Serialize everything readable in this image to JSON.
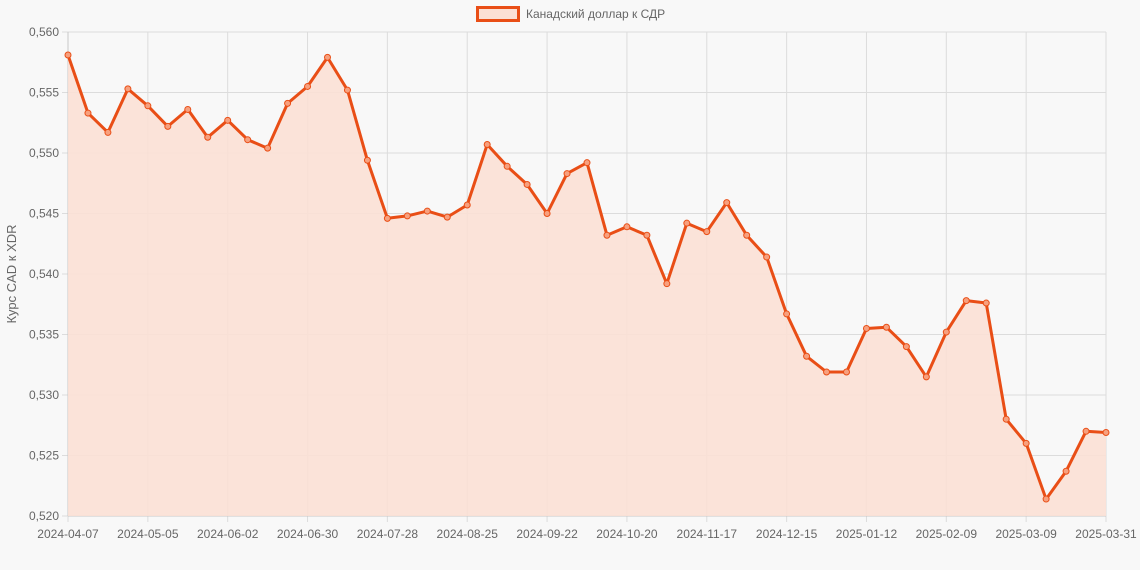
{
  "legend": {
    "label": "Канадский доллар к СДР",
    "swatch_fill": "#fbe0d5",
    "swatch_border": "#e94e16"
  },
  "chart_data": {
    "type": "area",
    "title": "",
    "xlabel": "",
    "ylabel": "Курс CAD к XDR",
    "ylim": [
      0.52,
      0.56
    ],
    "y_ticks": [
      "0,560",
      "0,555",
      "0,550",
      "0,545",
      "0,540",
      "0,535",
      "0,530",
      "0,525",
      "0,520"
    ],
    "x_ticks": [
      "2024-04-07",
      "2024-05-05",
      "2024-06-02",
      "2024-06-30",
      "2024-07-28",
      "2024-08-25",
      "2024-09-22",
      "2024-10-20",
      "2024-11-17",
      "2024-12-15",
      "2025-01-12",
      "2025-02-09",
      "2025-03-09",
      "2025-03-31"
    ],
    "grid": true,
    "legend_position": "top",
    "line_color": "#e94e16",
    "fill_color": "#fbe0d5",
    "series": [
      {
        "name": "Канадский доллар к СДР",
        "values": [
          0.5581,
          0.5533,
          0.5517,
          0.5553,
          0.5539,
          0.5522,
          0.5536,
          0.5513,
          0.5527,
          0.5511,
          0.5504,
          0.5541,
          0.5555,
          0.5579,
          0.5552,
          0.5494,
          0.5446,
          0.5448,
          0.5452,
          0.5447,
          0.5457,
          0.5507,
          0.5489,
          0.5474,
          0.545,
          0.5483,
          0.5492,
          0.5432,
          0.5439,
          0.5432,
          0.5392,
          0.5442,
          0.5435,
          0.5459,
          0.5432,
          0.5414,
          0.5367,
          0.5332,
          0.5319,
          0.5319,
          0.5355,
          0.5356,
          0.534,
          0.5315,
          0.5352,
          0.5378,
          0.5376,
          0.528,
          0.526,
          0.5214,
          0.5237,
          0.527,
          0.5269
        ]
      }
    ]
  }
}
